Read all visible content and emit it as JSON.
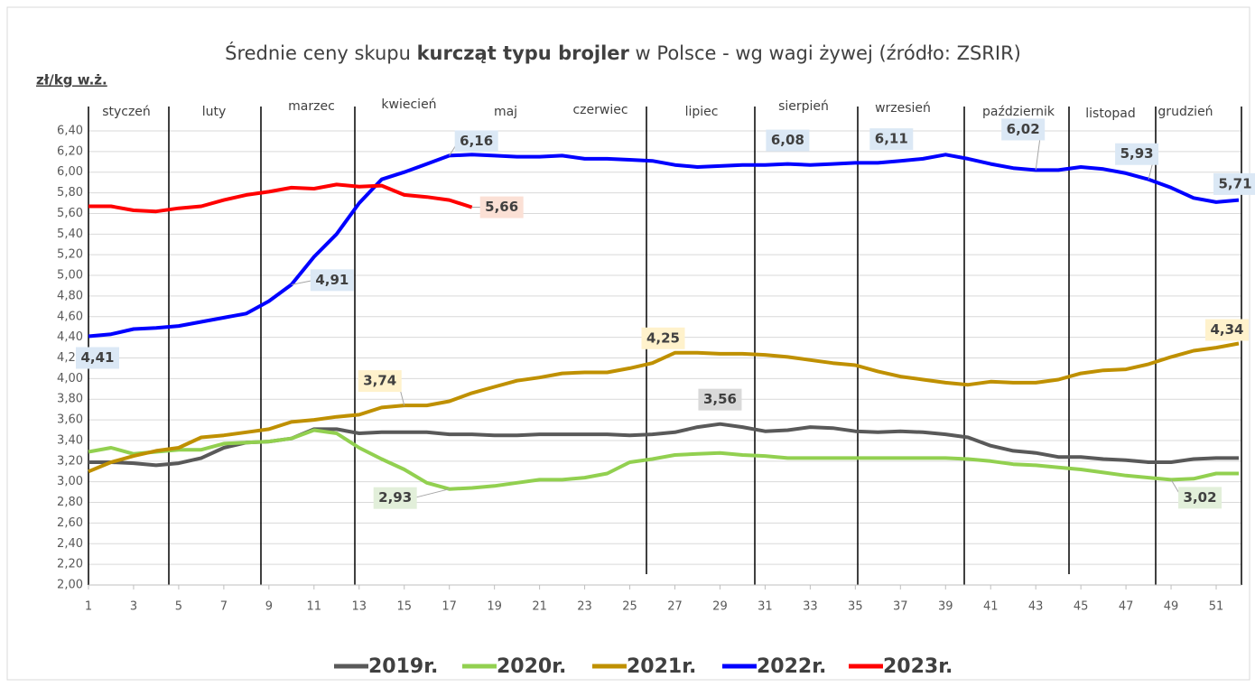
{
  "chart_data": {
    "type": "line",
    "title": [
      "Średnie ceny skupu ",
      "kurcząt typu brojler",
      " w Polsce - wg wagi żywej (źródło: ZSRIR)"
    ],
    "y_label": "zł/kg w.ż.",
    "months": [
      "styczeń",
      "luty",
      "marzec",
      "kwiecień",
      "maj",
      "czerwiec",
      "lipiec",
      "sierpień",
      "wrzesień",
      "październik",
      "listopad",
      "grudzień"
    ],
    "x": [
      1,
      2,
      3,
      4,
      5,
      6,
      7,
      8,
      9,
      10,
      11,
      12,
      13,
      14,
      15,
      16,
      17,
      18,
      19,
      20,
      21,
      22,
      23,
      24,
      25,
      26,
      27,
      28,
      29,
      30,
      31,
      32,
      33,
      34,
      35,
      36,
      37,
      38,
      39,
      40,
      41,
      42,
      43,
      44,
      45,
      46,
      47,
      48,
      49,
      50,
      51,
      52
    ],
    "xlim": [
      1,
      52
    ],
    "xticks": [
      1,
      3,
      5,
      7,
      9,
      11,
      13,
      15,
      17,
      19,
      21,
      23,
      25,
      27,
      29,
      31,
      33,
      35,
      37,
      39,
      41,
      43,
      45,
      47,
      49,
      51
    ],
    "ylim": [
      2,
      6.4
    ],
    "yticks": [
      {
        "value": 2,
        "label": "2,00"
      },
      {
        "value": 2.2,
        "label": "2,20"
      },
      {
        "value": 2.4,
        "label": "2,40"
      },
      {
        "value": 2.6,
        "label": "2,60"
      },
      {
        "value": 2.8,
        "label": "2,80"
      },
      {
        "value": 3,
        "label": "3,00"
      },
      {
        "value": 3.2,
        "label": "3,20"
      },
      {
        "value": 3.4,
        "label": "3,40"
      },
      {
        "value": 3.6,
        "label": "3,60"
      },
      {
        "value": 3.8,
        "label": "3,80"
      },
      {
        "value": 4,
        "label": "4,00"
      },
      {
        "value": 4.2,
        "label": "4,20"
      },
      {
        "value": 4.4,
        "label": "4,40"
      },
      {
        "value": 4.6,
        "label": "4,60"
      },
      {
        "value": 4.8,
        "label": "4,80"
      },
      {
        "value": 5,
        "label": "5,00"
      },
      {
        "value": 5.2,
        "label": "5,20"
      },
      {
        "value": 5.4,
        "label": "5,40"
      },
      {
        "value": 5.6,
        "label": "5,60"
      },
      {
        "value": 5.8,
        "label": "5,80"
      },
      {
        "value": 6,
        "label": "6,00"
      },
      {
        "value": 6.2,
        "label": "6,20"
      },
      {
        "value": 6.4,
        "label": "6,40"
      }
    ],
    "grid": true,
    "legend": "bottom",
    "series": [
      {
        "name": "2019r.",
        "color": "#595959",
        "label_color": "#d9d9d9",
        "values": [
          3.19,
          3.19,
          3.18,
          3.16,
          3.18,
          3.23,
          3.33,
          3.38,
          3.39,
          3.42,
          3.51,
          3.51,
          3.47,
          3.48,
          3.48,
          3.48,
          3.46,
          3.46,
          3.45,
          3.45,
          3.46,
          3.46,
          3.46,
          3.46,
          3.45,
          3.46,
          3.48,
          3.53,
          3.56,
          3.53,
          3.49,
          3.5,
          3.53,
          3.52,
          3.49,
          3.48,
          3.49,
          3.48,
          3.46,
          3.43,
          3.35,
          3.3,
          3.28,
          3.24,
          3.24,
          3.22,
          3.21,
          3.19,
          3.19,
          3.22,
          3.23,
          3.23
        ],
        "value_labels": [
          null,
          null,
          null,
          null,
          null,
          null,
          null,
          null,
          null,
          null,
          null,
          null,
          null,
          null,
          null,
          null,
          null,
          null,
          null,
          null,
          null,
          null,
          null,
          null,
          null,
          null,
          null,
          null,
          "3,56",
          null,
          null,
          null,
          null,
          null,
          null,
          null,
          null,
          null,
          null,
          null,
          null,
          null,
          null,
          null,
          null,
          null,
          null,
          null,
          null,
          null,
          null,
          null
        ]
      },
      {
        "name": "2020r.",
        "color": "#92d050",
        "label_color": "#e2efda",
        "values": [
          3.29,
          3.33,
          3.27,
          3.29,
          3.31,
          3.31,
          3.37,
          3.38,
          3.39,
          3.42,
          3.5,
          3.47,
          3.33,
          3.22,
          3.12,
          2.99,
          2.93,
          2.94,
          2.96,
          2.99,
          3.02,
          3.02,
          3.04,
          3.08,
          3.19,
          3.22,
          3.26,
          3.27,
          3.28,
          3.26,
          3.25,
          3.23,
          3.23,
          3.23,
          3.23,
          3.23,
          3.23,
          3.23,
          3.23,
          3.22,
          3.2,
          3.17,
          3.16,
          3.14,
          3.12,
          3.09,
          3.06,
          3.04,
          3.02,
          3.03,
          3.08,
          3.08
        ],
        "value_labels": [
          null,
          null,
          null,
          null,
          null,
          null,
          null,
          null,
          null,
          null,
          null,
          null,
          null,
          null,
          null,
          null,
          "2,93",
          null,
          null,
          null,
          null,
          null,
          null,
          null,
          null,
          null,
          null,
          null,
          null,
          null,
          null,
          null,
          null,
          null,
          null,
          null,
          null,
          null,
          null,
          null,
          null,
          null,
          null,
          null,
          null,
          null,
          null,
          null,
          "3,02",
          null,
          null,
          null
        ]
      },
      {
        "name": "2021r.",
        "color": "#bf9000",
        "label_color": "#fff2cc",
        "values": [
          3.1,
          3.19,
          3.25,
          3.3,
          3.33,
          3.43,
          3.45,
          3.48,
          3.51,
          3.58,
          3.6,
          3.63,
          3.65,
          3.72,
          3.74,
          3.74,
          3.78,
          3.86,
          3.92,
          3.98,
          4.01,
          4.05,
          4.06,
          4.06,
          4.1,
          4.15,
          4.25,
          4.25,
          4.24,
          4.24,
          4.23,
          4.21,
          4.18,
          4.15,
          4.13,
          4.07,
          4.02,
          3.99,
          3.96,
          3.94,
          3.97,
          3.96,
          3.96,
          3.99,
          4.05,
          4.08,
          4.09,
          4.14,
          4.21,
          4.27,
          4.3,
          4.34
        ],
        "value_labels": [
          null,
          null,
          null,
          null,
          null,
          null,
          null,
          null,
          null,
          null,
          null,
          null,
          null,
          null,
          "3,74",
          null,
          null,
          null,
          null,
          null,
          null,
          null,
          null,
          null,
          null,
          null,
          "4,25",
          null,
          null,
          null,
          null,
          null,
          null,
          null,
          null,
          null,
          null,
          null,
          null,
          null,
          null,
          null,
          null,
          null,
          null,
          null,
          null,
          null,
          null,
          null,
          null,
          "4,34"
        ]
      },
      {
        "name": "2022r.",
        "color": "#0000ff",
        "label_color": "#dbe8f5",
        "values": [
          4.41,
          4.43,
          4.48,
          4.49,
          4.51,
          4.55,
          4.59,
          4.63,
          4.75,
          4.91,
          5.18,
          5.4,
          5.7,
          5.93,
          6,
          6.08,
          6.16,
          6.17,
          6.16,
          6.15,
          6.15,
          6.16,
          6.13,
          6.13,
          6.12,
          6.11,
          6.07,
          6.05,
          6.06,
          6.07,
          6.07,
          6.08,
          6.07,
          6.08,
          6.09,
          6.09,
          6.11,
          6.13,
          6.17,
          6.13,
          6.08,
          6.04,
          6.02,
          6.02,
          6.05,
          6.03,
          5.99,
          5.93,
          5.85,
          5.75,
          5.71,
          5.73
        ],
        "value_labels": [
          "4,41",
          null,
          null,
          null,
          null,
          null,
          null,
          null,
          null,
          "4,91",
          null,
          null,
          null,
          null,
          null,
          null,
          "6,16",
          null,
          null,
          null,
          null,
          null,
          null,
          null,
          null,
          null,
          null,
          null,
          null,
          null,
          null,
          "6,08",
          null,
          null,
          null,
          null,
          "6,11",
          null,
          null,
          null,
          null,
          null,
          "6,02",
          null,
          null,
          null,
          null,
          "5,93",
          null,
          null,
          "5,71",
          null
        ]
      },
      {
        "name": "2023r.",
        "color": "#ff0000",
        "label_color": "#fbe0d5",
        "values": [
          5.67,
          5.67,
          5.63,
          5.62,
          5.65,
          5.67,
          5.73,
          5.78,
          5.81,
          5.85,
          5.84,
          5.88,
          5.86,
          5.87,
          5.78,
          5.76,
          5.73,
          5.66,
          null,
          null,
          null,
          null,
          null,
          null,
          null,
          null,
          null,
          null,
          null,
          null,
          null,
          null,
          null,
          null,
          null,
          null,
          null,
          null,
          null,
          null,
          null,
          null,
          null,
          null,
          null,
          null,
          null,
          null,
          null,
          null,
          null,
          null
        ],
        "value_labels": [
          null,
          null,
          null,
          null,
          null,
          null,
          null,
          null,
          null,
          null,
          null,
          null,
          null,
          null,
          null,
          null,
          null,
          "5,66",
          null,
          null,
          null,
          null,
          null,
          null,
          null,
          null,
          null,
          null,
          null,
          null,
          null,
          null,
          null,
          null,
          null,
          null,
          null,
          null,
          null,
          null,
          null,
          null,
          null,
          null,
          null,
          null,
          null,
          null,
          null,
          null,
          null,
          null
        ]
      }
    ]
  }
}
